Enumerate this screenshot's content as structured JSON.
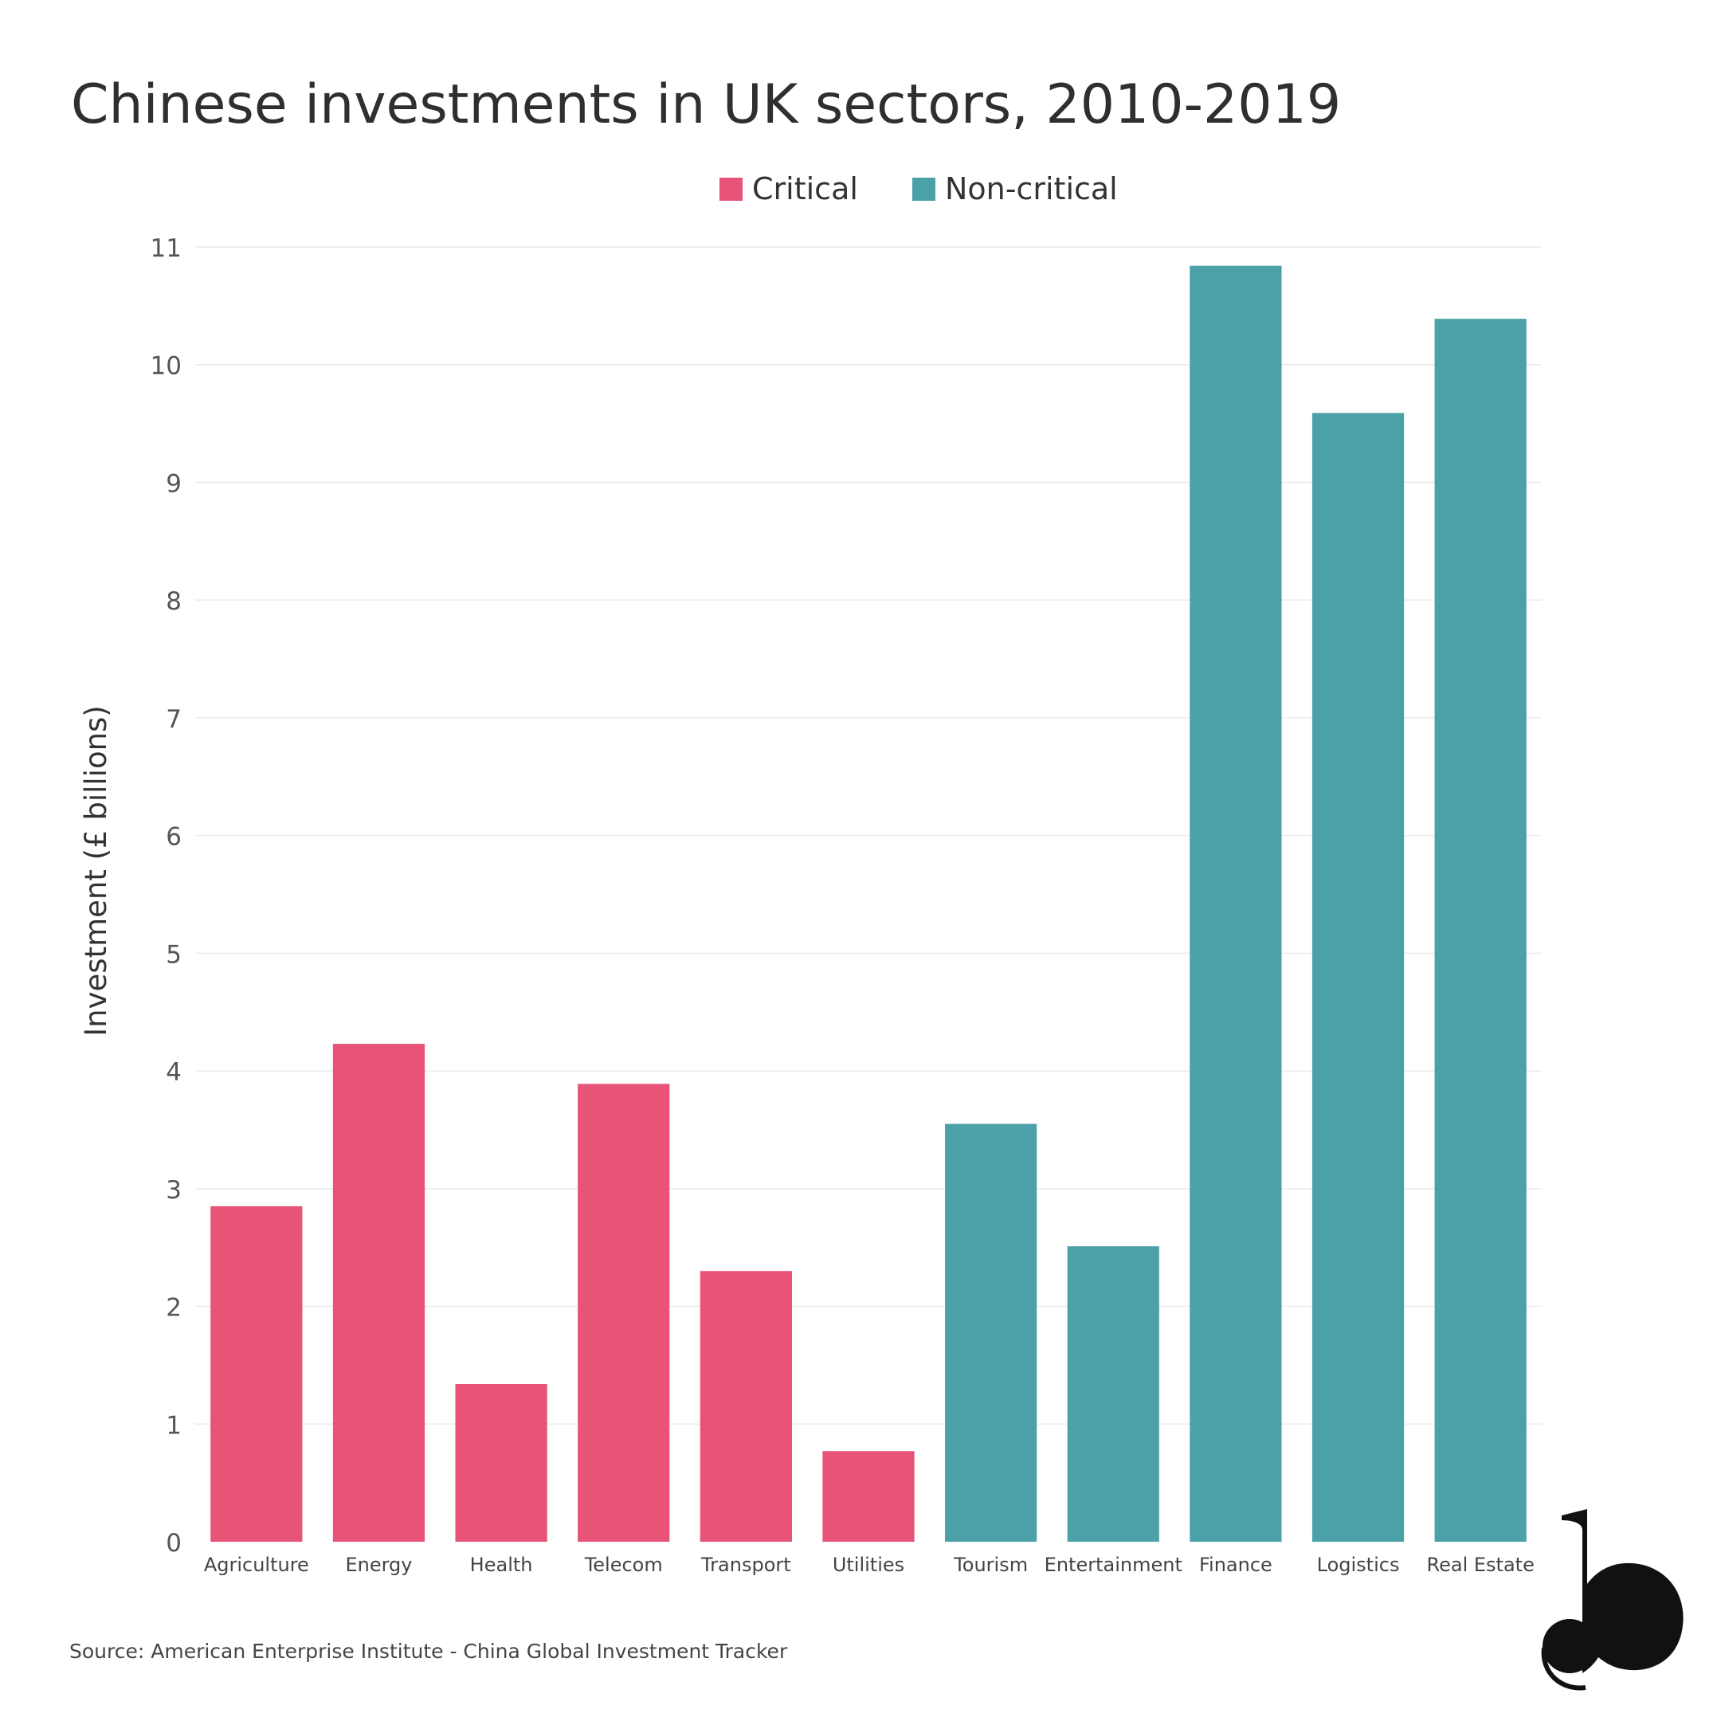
{
  "chart_data": {
    "type": "bar",
    "title": "Chinese investments in UK sectors, 2010-2019",
    "ylabel": "Investment (£ billions)",
    "xlabel": "",
    "ylim": [
      0,
      11
    ],
    "yticks": [
      0,
      1,
      2,
      3,
      4,
      5,
      6,
      7,
      8,
      9,
      10,
      11
    ],
    "grid": true,
    "legend_position": "top-center",
    "categories": [
      "Agriculture",
      "Energy",
      "Health",
      "Telecom",
      "Transport",
      "Utilities",
      "Tourism",
      "Entertainment",
      "Finance",
      "Logistics",
      "Real Estate"
    ],
    "values": [
      2.85,
      4.23,
      1.34,
      3.89,
      2.3,
      0.77,
      3.55,
      2.51,
      10.84,
      9.59,
      10.39
    ],
    "groups": [
      "Critical",
      "Critical",
      "Critical",
      "Critical",
      "Critical",
      "Critical",
      "Non-critical",
      "Non-critical",
      "Non-critical",
      "Non-critical",
      "Non-critical"
    ],
    "legend": [
      {
        "name": "Critical",
        "color": "#e85378"
      },
      {
        "name": "Non-critical",
        "color": "#4ca1a9"
      }
    ],
    "source": "Source: American Enterprise Institute - China Global Investment Tracker"
  }
}
